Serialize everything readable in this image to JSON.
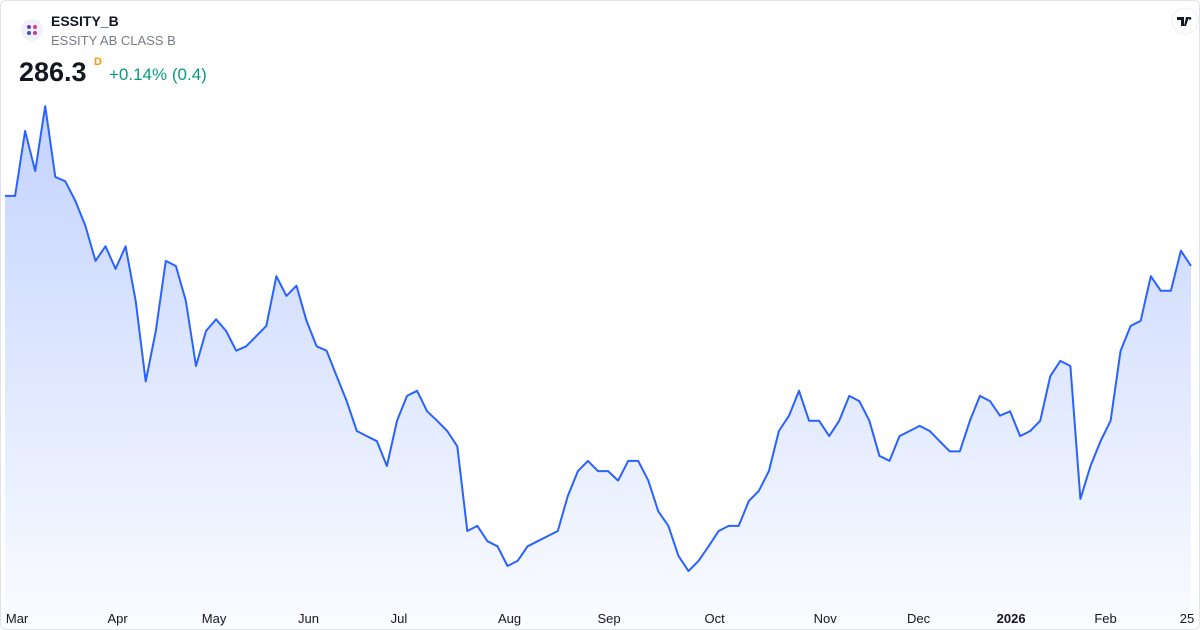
{
  "header": {
    "symbol": "ESSITY_B",
    "name": "ESSITY AB CLASS B",
    "price": 286.3,
    "interval": "D",
    "change": "+0.14% (0.4)"
  },
  "chart_data": {
    "type": "area",
    "color": "#2962ff",
    "values": [
      295.9,
      295.9,
      304.8,
      299.3,
      308.2,
      298.5,
      297.9,
      295.2,
      291.8,
      287.0,
      289.0,
      285.9,
      289.0,
      281.5,
      270.5,
      277.4,
      287.0,
      286.3,
      281.5,
      272.6,
      277.4,
      279.0,
      277.4,
      274.7,
      275.3,
      276.7,
      278.1,
      284.9,
      282.2,
      283.6,
      278.8,
      275.3,
      274.7,
      271.2,
      267.8,
      263.7,
      263.0,
      262.3,
      258.9,
      265.1,
      268.5,
      269.2,
      266.4,
      265.1,
      263.7,
      261.6,
      250.0,
      250.7,
      248.6,
      247.9,
      245.2,
      245.9,
      247.9,
      248.6,
      249.3,
      250.0,
      254.8,
      258.2,
      259.6,
      258.2,
      258.2,
      256.9,
      259.6,
      259.6,
      256.9,
      252.7,
      250.7,
      246.6,
      244.5,
      245.9,
      247.9,
      250.0,
      250.7,
      250.7,
      254.1,
      255.5,
      258.2,
      263.7,
      265.8,
      269.2,
      265.1,
      265.1,
      263.0,
      265.1,
      268.5,
      267.8,
      265.1,
      260.3,
      259.6,
      263.0,
      263.7,
      264.4,
      263.7,
      262.3,
      260.9,
      260.9,
      265.1,
      268.5,
      267.8,
      265.8,
      266.4,
      263.0,
      263.7,
      265.1,
      271.2,
      273.3,
      272.6,
      254.4,
      258.9,
      262.3,
      265.1,
      274.7,
      278.1,
      278.8,
      284.9,
      282.9,
      282.9,
      288.4,
      286.3
    ],
    "xlim": [
      0,
      118
    ],
    "ylim": [
      240,
      310
    ],
    "xticks": [
      {
        "value": 1.2,
        "label": "Mar"
      },
      {
        "value": 11.2,
        "label": "Apr"
      },
      {
        "value": 20.8,
        "label": "May"
      },
      {
        "value": 30.2,
        "label": "Jun"
      },
      {
        "value": 39.2,
        "label": "Jul"
      },
      {
        "value": 50.2,
        "label": "Aug"
      },
      {
        "value": 60.1,
        "label": "Sep"
      },
      {
        "value": 70.6,
        "label": "Oct"
      },
      {
        "value": 81.6,
        "label": "Nov"
      },
      {
        "value": 90.9,
        "label": "Dec"
      },
      {
        "value": 100.1,
        "label": "2026"
      },
      {
        "value": 109.5,
        "label": "Feb"
      },
      {
        "value": 117.6,
        "label": "25"
      }
    ]
  }
}
